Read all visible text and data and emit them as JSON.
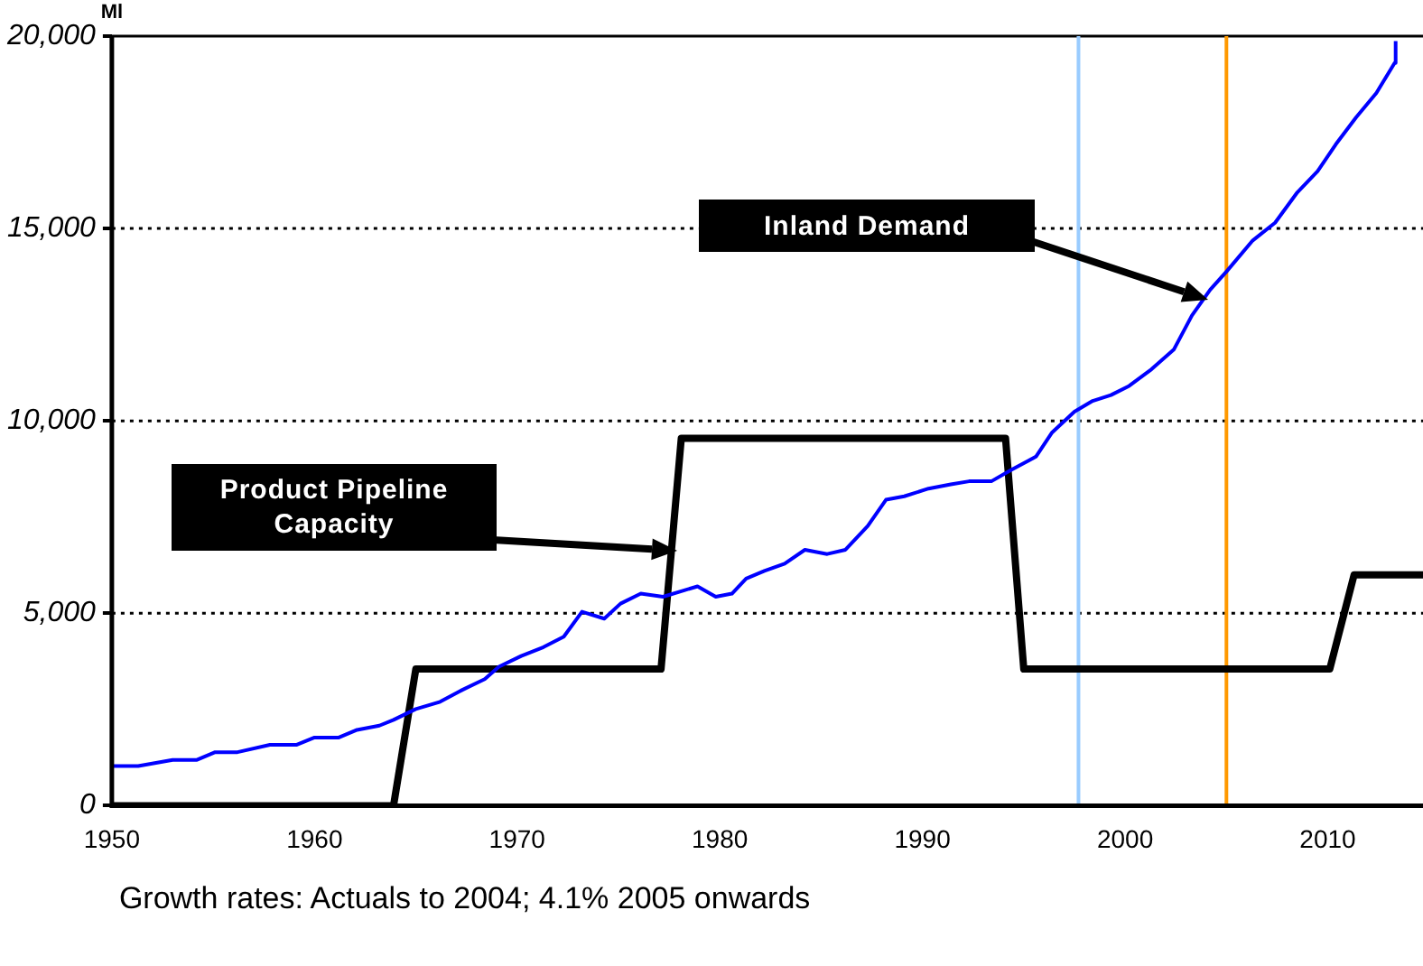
{
  "chart_data": {
    "type": "line",
    "ylabel": "Ml",
    "xlim": [
      1950,
      2014.7
    ],
    "xticks": [
      1950,
      1960,
      1970,
      1980,
      1990,
      2000,
      2010
    ],
    "ylim": [
      0,
      20000
    ],
    "yticks": [
      {
        "value": 0,
        "label": "0"
      },
      {
        "value": 5000,
        "label": "5,000"
      },
      {
        "value": 10000,
        "label": "10,000"
      },
      {
        "value": 15000,
        "label": "15,000"
      },
      {
        "value": 20000,
        "label": "20,000"
      }
    ],
    "grid": "y",
    "legend": false,
    "marker": "none",
    "line_style": "solid",
    "series": [
      {
        "color": "#0000ff",
        "x": [
          1950,
          1951.3,
          1953,
          1954.2,
          1955.1,
          1956.2,
          1957.8,
          1959.1,
          1960,
          1961.2,
          1962.1,
          1963.2,
          1963.9,
          1965,
          1966.2,
          1967.3,
          1968.4,
          1969.1,
          1970.2,
          1971.3,
          1972.3,
          1973.2,
          1974.3,
          1975.1,
          1976.1,
          1977.2,
          1978.9,
          1979.8,
          1980.6,
          1981.3,
          1982.2,
          1983.2,
          1984.2,
          1985.3,
          1986.2,
          1987.3,
          1988.2,
          1989.1,
          1990.3,
          1991.4,
          1992.3,
          1993.4,
          1994.4,
          1995.6,
          1996.4,
          1997.5,
          1998.4,
          1999.3,
          2000.2,
          2001.3,
          2002.4,
          2003.3,
          2004.2,
          2005,
          2006.3,
          2007.4,
          2008.5,
          2009.5,
          2010.4,
          2011.4,
          2012.4,
          2013.3,
          2013.35
        ],
        "values": [
          1030,
          1030,
          1190,
          1190,
          1390,
          1390,
          1580,
          1580,
          1770,
          1770,
          1970,
          2080,
          2230,
          2510,
          2700,
          3010,
          3290,
          3610,
          3890,
          4120,
          4390,
          5040,
          4860,
          5250,
          5510,
          5430,
          5700,
          5430,
          5510,
          5900,
          6100,
          6290,
          6650,
          6540,
          6650,
          7270,
          7950,
          8040,
          8240,
          8350,
          8430,
          8430,
          8730,
          9070,
          9700,
          10240,
          10520,
          10670,
          10910,
          11340,
          11850,
          12740,
          13410,
          13880,
          14690,
          15150,
          15940,
          16490,
          17190,
          17890,
          18520,
          19300,
          19870
        ]
      },
      {
        "color": "#000000",
        "x": [
          1950,
          1963.9,
          1965,
          1977.1,
          1978.1,
          1994.1,
          1995,
          2010.1,
          2011.3,
          2014.7
        ],
        "values": [
          0,
          0,
          3550,
          3550,
          9550,
          9550,
          3550,
          3550,
          6000,
          6000
        ]
      }
    ],
    "ref_lines": [
      {
        "axis": "x",
        "value": 1997.7,
        "color": "#99ccff"
      },
      {
        "axis": "x",
        "value": 2005,
        "color": "#ff9900"
      }
    ],
    "annotations": [
      "Product Pipeline Capacity",
      "Inland Demand",
      "Growth rates: Actuals to 2004; 4.1% 2005 onwards"
    ]
  }
}
